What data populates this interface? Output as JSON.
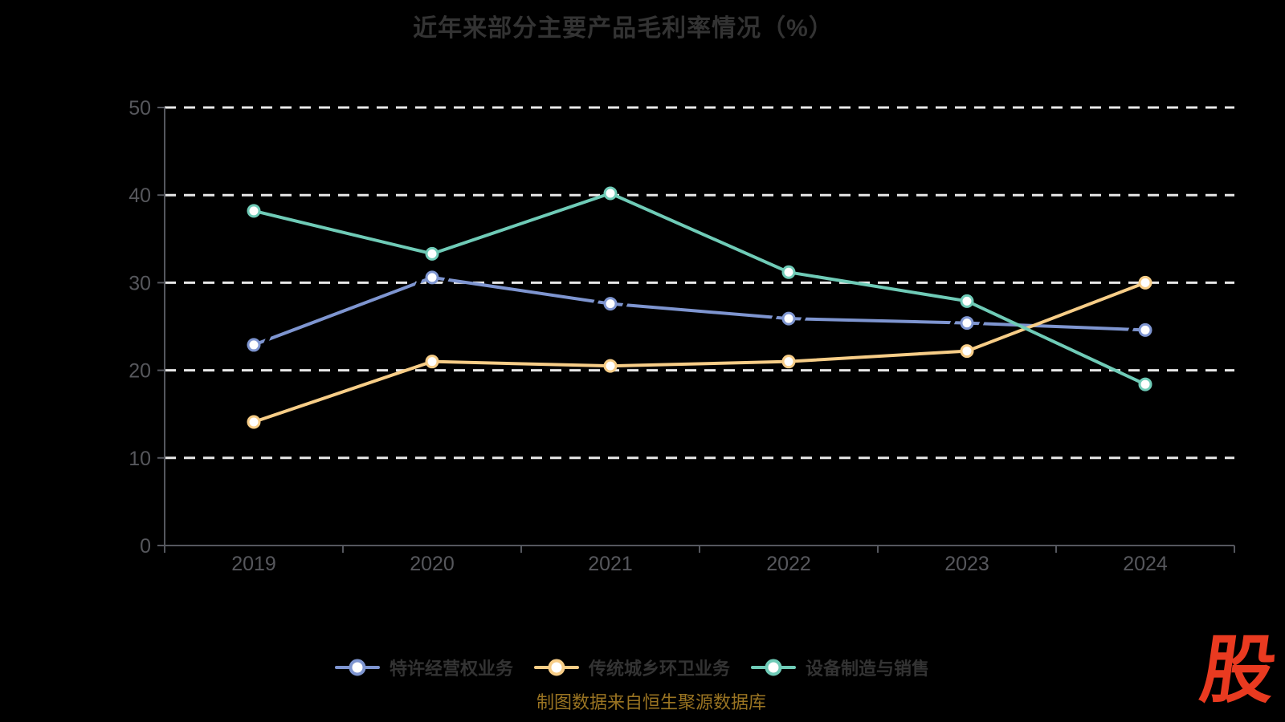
{
  "title": "近年来部分主要产品毛利率情况（%）",
  "source_note": "制图数据来自恒生聚源数据库",
  "logo": {
    "text": "股",
    "color": "#e93a20"
  },
  "colors": {
    "background": "#000000",
    "title": "#333333",
    "axis_line": "#55575e",
    "axis_label": "#56575c",
    "gridline": "#e8e8e8",
    "legend_text": "#333333",
    "source_text": "#9a7422"
  },
  "chart_data": {
    "type": "line",
    "title": "近年来部分主要产品毛利率情况（%）",
    "categories": [
      "2019",
      "2020",
      "2021",
      "2022",
      "2023",
      "2024"
    ],
    "series": [
      {
        "name": "特许经营权业务",
        "color": "#7e95d0",
        "marker_fill": "#ffffff",
        "notched": true,
        "values": [
          22.9,
          30.6,
          27.6,
          25.9,
          25.4,
          24.6
        ]
      },
      {
        "name": "传统城乡环卫业务",
        "color": "#f7cd87",
        "marker_fill": "#ffffff",
        "notched": false,
        "values": [
          14.1,
          21.0,
          20.5,
          21.0,
          22.2,
          30.0
        ]
      },
      {
        "name": "设备制造与销售",
        "color": "#6fcbb7",
        "marker_fill": "#ffffff",
        "notched": false,
        "values": [
          38.2,
          33.3,
          40.2,
          31.2,
          27.9,
          18.4
        ]
      }
    ],
    "xlabel": "",
    "ylabel": "",
    "ylim": [
      0,
      50
    ],
    "yticks": [
      0,
      10,
      20,
      30,
      40,
      50
    ],
    "grid": "horizontal-dashed-white",
    "legend_position": "bottom"
  }
}
